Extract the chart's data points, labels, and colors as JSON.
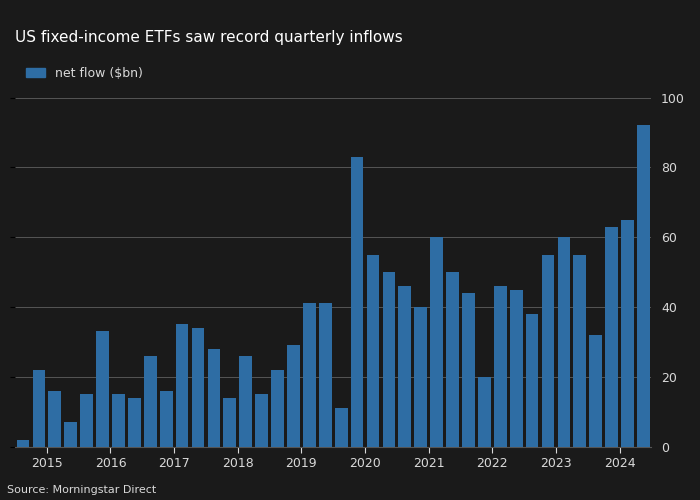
{
  "title": "US fixed-income ETFs saw record quarterly inflows",
  "legend_label": "net flow ($bn)",
  "source": "Source: Morningstar Direct",
  "bar_color": "#2e6da4",
  "fig_background": "#1a1a1a",
  "axes_background": "#1a1a1a",
  "text_color": "#d9d9d9",
  "grid_color": "#555555",
  "spine_color": "#555555",
  "ylim": [
    0,
    100
  ],
  "yticks": [
    0,
    20,
    40,
    60,
    80,
    100
  ],
  "values": [
    2,
    22,
    16,
    7,
    15,
    33,
    15,
    14,
    26,
    16,
    35,
    34,
    28,
    14,
    26,
    15,
    22,
    29,
    41,
    41,
    11,
    83,
    55,
    50,
    46,
    40,
    60,
    50,
    44,
    20,
    46,
    45,
    38,
    55,
    60,
    55,
    32,
    63,
    65,
    92
  ],
  "xtick_years": [
    "2015",
    "2016",
    "2017",
    "2018",
    "2019",
    "2020",
    "2021",
    "2022",
    "2023",
    "2024"
  ],
  "xtick_positions": [
    1.5,
    5.5,
    9.5,
    13.5,
    17.5,
    21.5,
    25.5,
    29.5,
    33.5,
    37.5
  ],
  "title_fontsize": 11,
  "legend_fontsize": 9,
  "tick_fontsize": 9,
  "source_fontsize": 8
}
